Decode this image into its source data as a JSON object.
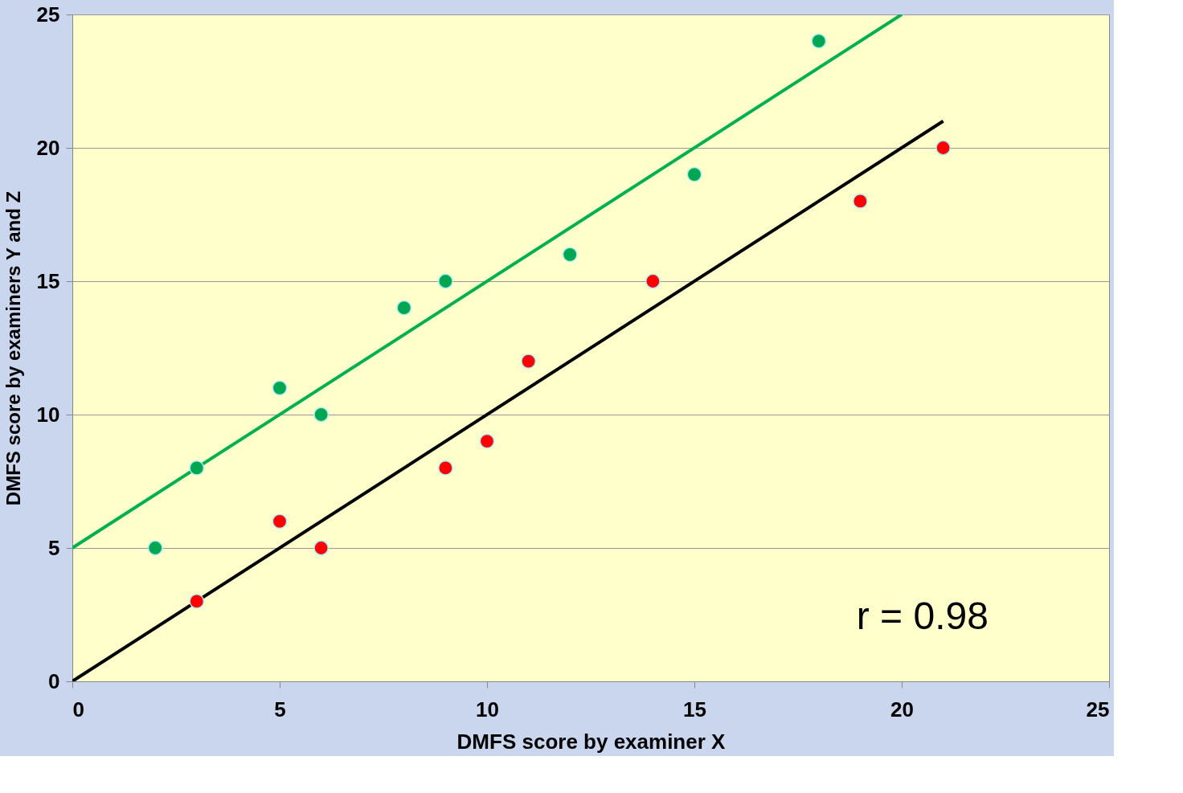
{
  "chart_data": {
    "type": "scatter",
    "xlabel": "DMFS score by examiner X",
    "ylabel": "DMFS score by examiners Y and Z",
    "xlim": [
      0,
      25
    ],
    "ylim": [
      0,
      25
    ],
    "xticks": [
      0,
      5,
      10,
      15,
      20,
      25
    ],
    "yticks": [
      0,
      5,
      10,
      15,
      20,
      25
    ],
    "grid": "y",
    "series": [
      {
        "marker": "circle",
        "color": "#00a651",
        "x": [
          2,
          3,
          5,
          6,
          8,
          9,
          12,
          15,
          18
        ],
        "values": [
          5,
          8,
          11,
          10,
          14,
          15,
          16,
          19,
          24
        ]
      },
      {
        "marker": "circle",
        "color": "#ff0000",
        "x": [
          3,
          5,
          6,
          9,
          10,
          11,
          14,
          19,
          21
        ],
        "values": [
          3,
          6,
          5,
          8,
          9,
          12,
          15,
          18,
          20
        ]
      },
      {
        "type": "line",
        "marker": "none",
        "color": "#00b050",
        "x": [
          0,
          20
        ],
        "values": [
          5,
          25
        ]
      },
      {
        "type": "line",
        "marker": "none",
        "color": "#000000",
        "x": [
          0,
          21
        ],
        "values": [
          0,
          21
        ]
      }
    ],
    "annotations": [
      "r = 0.98"
    ]
  }
}
